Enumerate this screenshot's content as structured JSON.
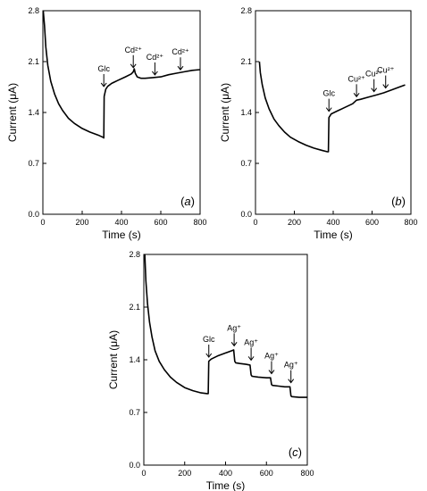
{
  "chart_data": [
    {
      "type": "line",
      "panel_label": "a",
      "xlabel": "Time (s)",
      "ylabel": "Current (μA)",
      "xlim": [
        0,
        800
      ],
      "ylim": [
        0.0,
        2.8
      ],
      "xticks": [
        "0",
        "200",
        "400",
        "600",
        "800"
      ],
      "yticks": [
        "0.0",
        "0.7",
        "1.4",
        "2.1",
        "2.8"
      ],
      "grid": false,
      "series": [
        {
          "x": [
            2,
            8,
            15,
            25,
            40,
            60,
            80,
            100,
            130,
            160,
            200,
            240,
            280,
            305,
            310,
            312,
            320,
            330,
            350,
            380,
            420,
            450,
            460,
            465,
            470,
            480,
            500,
            520,
            560,
            600,
            640,
            680,
            720,
            760,
            800
          ],
          "y": [
            2.8,
            2.6,
            2.3,
            2.05,
            1.83,
            1.65,
            1.52,
            1.43,
            1.32,
            1.25,
            1.18,
            1.13,
            1.09,
            1.06,
            1.05,
            1.62,
            1.72,
            1.76,
            1.8,
            1.84,
            1.89,
            1.93,
            1.96,
            2.0,
            1.94,
            1.89,
            1.87,
            1.87,
            1.88,
            1.89,
            1.92,
            1.94,
            1.96,
            1.98,
            1.99
          ]
        }
      ],
      "annotations": [
        {
          "text": "Glc",
          "x": 310,
          "y": 1.72
        },
        {
          "text": "Cd²⁺",
          "x": 460,
          "y": 1.98
        },
        {
          "text": "Cd²⁺",
          "x": 570,
          "y": 1.88
        },
        {
          "text": "Cd²⁺",
          "x": 700,
          "y": 1.95
        }
      ]
    },
    {
      "type": "line",
      "panel_label": "b",
      "xlabel": "Time (s)",
      "ylabel": "Current (μA)",
      "xlim": [
        0,
        800
      ],
      "ylim": [
        0.0,
        2.8
      ],
      "xticks": [
        "0",
        "200",
        "400",
        "600",
        "800"
      ],
      "yticks": [
        "0.0",
        "0.7",
        "1.4",
        "2.1",
        "2.8"
      ],
      "grid": false,
      "series": [
        {
          "x": [
            20,
            25,
            35,
            50,
            70,
            95,
            120,
            150,
            180,
            220,
            260,
            300,
            340,
            370,
            375,
            378,
            390,
            420,
            460,
            500,
            520,
            540,
            580,
            620,
            660,
            700,
            740,
            770
          ],
          "y": [
            2.1,
            1.95,
            1.78,
            1.6,
            1.45,
            1.31,
            1.22,
            1.13,
            1.06,
            1.0,
            0.95,
            0.91,
            0.88,
            0.86,
            0.86,
            1.33,
            1.38,
            1.42,
            1.47,
            1.52,
            1.57,
            1.58,
            1.61,
            1.64,
            1.67,
            1.71,
            1.75,
            1.78
          ]
        }
      ],
      "annotations": [
        {
          "text": "Glc",
          "x": 378,
          "y": 1.38
        },
        {
          "text": "Cu²⁺",
          "x": 520,
          "y": 1.58
        },
        {
          "text": "Cu²⁺",
          "x": 610,
          "y": 1.65
        },
        {
          "text": "Cu²⁺",
          "x": 670,
          "y": 1.7
        }
      ]
    },
    {
      "type": "line",
      "panel_label": "c",
      "xlabel": "Time (s)",
      "ylabel": "Current (μA)",
      "xlim": [
        0,
        800
      ],
      "ylim": [
        0.0,
        2.8
      ],
      "xticks": [
        "0",
        "200",
        "400",
        "600",
        "800"
      ],
      "yticks": [
        "0.0",
        "0.7",
        "1.4",
        "2.1",
        "2.8"
      ],
      "grid": false,
      "series": [
        {
          "x": [
            5,
            10,
            18,
            28,
            40,
            55,
            75,
            100,
            130,
            160,
            200,
            240,
            280,
            310,
            315,
            318,
            330,
            360,
            400,
            430,
            440,
            445,
            450,
            470,
            500,
            520,
            525,
            530,
            560,
            600,
            620,
            625,
            630,
            660,
            690,
            715,
            720,
            725,
            760,
            800
          ],
          "y": [
            2.8,
            2.45,
            2.15,
            1.9,
            1.7,
            1.52,
            1.38,
            1.27,
            1.17,
            1.1,
            1.03,
            0.99,
            0.96,
            0.95,
            0.95,
            1.38,
            1.41,
            1.45,
            1.49,
            1.52,
            1.53,
            1.38,
            1.36,
            1.35,
            1.34,
            1.33,
            1.2,
            1.18,
            1.17,
            1.16,
            1.16,
            1.07,
            1.06,
            1.05,
            1.04,
            1.04,
            0.92,
            0.91,
            0.9,
            0.9
          ]
        }
      ],
      "annotations": [
        {
          "text": "Glc",
          "x": 318,
          "y": 1.4
        },
        {
          "text": "Ag⁺",
          "x": 442,
          "y": 1.55
        },
        {
          "text": "Ag⁺",
          "x": 525,
          "y": 1.36
        },
        {
          "text": "Ag⁺",
          "x": 625,
          "y": 1.18
        },
        {
          "text": "Ag⁺",
          "x": 720,
          "y": 1.06
        }
      ]
    }
  ]
}
